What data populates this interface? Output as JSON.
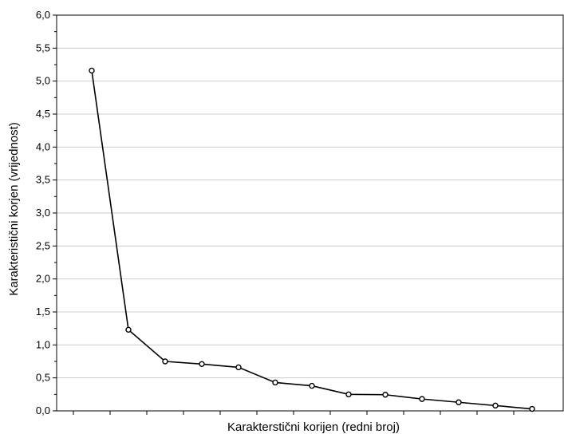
{
  "chart_data": {
    "type": "line",
    "title": "",
    "xlabel": "Karakterstični korijen (redni broj)",
    "ylabel": "Karakteristični korjen (vrijednost)",
    "x": [
      1,
      2,
      3,
      4,
      5,
      6,
      7,
      8,
      9,
      10,
      11,
      12,
      13
    ],
    "series": [
      {
        "values": [
          5.16,
          1.23,
          0.75,
          0.71,
          0.66,
          0.43,
          0.38,
          0.25,
          0.245,
          0.18,
          0.13,
          0.08,
          0.03
        ]
      }
    ],
    "ylim": [
      0,
      6
    ],
    "y_ticks": [
      "0,0",
      "0,5",
      "1,0",
      "1,5",
      "2,0",
      "2,5",
      "3,0",
      "3,5",
      "4,0",
      "4,5",
      "5,0",
      "5,5",
      "6,0"
    ],
    "grid": true,
    "legend": "none",
    "colors": {
      "line": "#000000",
      "grid": "#cccccc",
      "marker_fill": "#ffffff"
    }
  }
}
